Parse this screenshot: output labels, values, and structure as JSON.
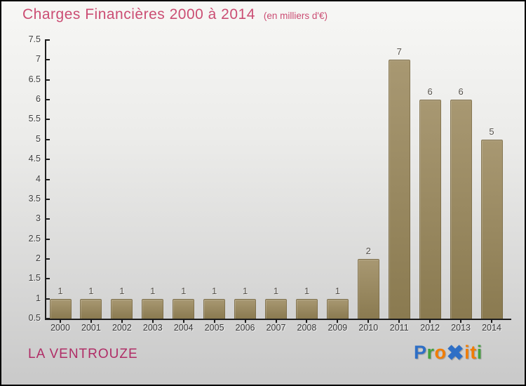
{
  "header": {
    "title": "Charges Financières 2000 à 2014",
    "subtitle": "(en milliers d'€)"
  },
  "chart_data": {
    "type": "bar",
    "categories": [
      "2000",
      "2001",
      "2002",
      "2003",
      "2004",
      "2005",
      "2006",
      "2007",
      "2008",
      "2009",
      "2010",
      "2011",
      "2012",
      "2013",
      "2014"
    ],
    "values": [
      1,
      1,
      1,
      1,
      1,
      1,
      1,
      1,
      1,
      1,
      2,
      7,
      6,
      6,
      5
    ],
    "title": "Charges Financières 2000 à 2014",
    "subtitle": "(en milliers d'€)",
    "xlabel": "",
    "ylabel": "",
    "ylim": [
      0.5,
      7.5
    ],
    "ytick_step": 0.5,
    "grid": false,
    "legend": false,
    "value_labels_shown": true,
    "bar_color_top": "#a89872",
    "bar_color_bottom": "#8a7a50",
    "axis_color": "#1c1c1c",
    "tick_label_color": "#3a3a3a",
    "value_label_color": "#57534d"
  },
  "footer": {
    "company": "LA VENTROUZE",
    "logo": {
      "name": "Proxiti",
      "letters": [
        {
          "ch": "P",
          "color": "#2e6fc6",
          "big": false
        },
        {
          "ch": "r",
          "color": "#44a13e",
          "big": false
        },
        {
          "ch": "o",
          "color": "#f07d05",
          "big": false
        },
        {
          "ch": "✖",
          "color": "#2e6fc6",
          "big": true
        },
        {
          "ch": "i",
          "color": "#f07d05",
          "big": false
        },
        {
          "ch": "t",
          "color": "#f07d05",
          "big": false
        },
        {
          "ch": "i",
          "color": "#44a13e",
          "big": false
        }
      ]
    }
  },
  "colors": {
    "title": "#cb4d73",
    "company": "#b02d66",
    "background_top": "#f7f7f5",
    "background_bottom": "#c9c9c9"
  }
}
